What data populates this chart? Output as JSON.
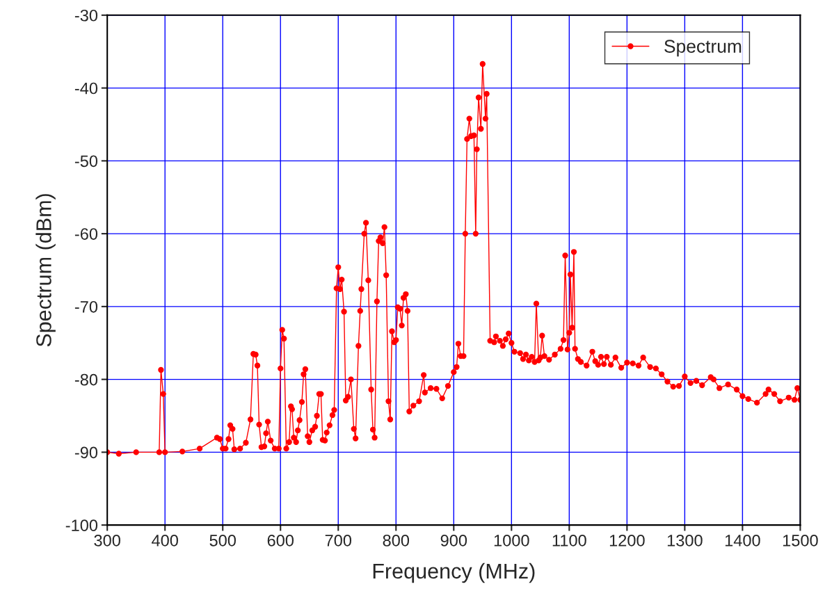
{
  "chart_data": {
    "type": "line",
    "xlabel": "Frequency (MHz)",
    "ylabel": "Spectrum (dBm)",
    "xlim": [
      300,
      1500
    ],
    "xticks": [
      300,
      400,
      500,
      600,
      700,
      800,
      900,
      1000,
      1100,
      1200,
      1300,
      1400,
      1500
    ],
    "ylim": [
      -100,
      -30
    ],
    "yticks": [
      -100,
      -90,
      -80,
      -70,
      -60,
      -50,
      -40,
      -30
    ],
    "grid": true,
    "legend": "top right",
    "marker": "circle",
    "line_style": "solid",
    "series": [
      {
        "name": "Spectrum",
        "color": "#ff0000",
        "x": [
          300,
          320,
          350,
          390,
          393,
          397,
          400,
          430,
          460,
          490,
          495,
          500,
          505,
          510,
          513,
          517,
          520,
          530,
          540,
          548,
          553,
          557,
          560,
          563,
          567,
          572,
          575,
          578,
          583,
          590,
          597,
          600,
          603,
          606,
          610,
          615,
          618,
          620,
          623,
          627,
          630,
          633,
          637,
          640,
          643,
          647,
          650,
          655,
          660,
          663,
          667,
          670,
          673,
          677,
          680,
          685,
          690,
          693,
          697,
          700,
          703,
          706,
          710,
          713,
          717,
          722,
          727,
          730,
          735,
          738,
          740,
          745,
          748,
          752,
          757,
          760,
          763,
          767,
          770,
          773,
          777,
          780,
          783,
          787,
          790,
          793,
          797,
          800,
          803,
          807,
          810,
          813,
          817,
          820,
          823,
          830,
          840,
          848,
          850,
          860,
          870,
          880,
          890,
          900,
          905,
          908,
          912,
          917,
          920,
          923,
          927,
          930,
          935,
          938,
          940,
          943,
          947,
          950,
          955,
          957,
          963,
          970,
          973,
          980,
          985,
          990,
          995,
          1000,
          1005,
          1015,
          1020,
          1025,
          1030,
          1035,
          1040,
          1043,
          1047,
          1050,
          1053,
          1057,
          1065,
          1075,
          1085,
          1090,
          1093,
          1097,
          1100,
          1102,
          1105,
          1108,
          1110,
          1115,
          1120,
          1130,
          1140,
          1145,
          1150,
          1155,
          1160,
          1165,
          1172,
          1180,
          1190,
          1200,
          1210,
          1220,
          1228,
          1240,
          1250,
          1260,
          1270,
          1280,
          1290,
          1300,
          1310,
          1320,
          1330,
          1345,
          1350,
          1360,
          1375,
          1390,
          1400,
          1410,
          1425,
          1440,
          1445,
          1455,
          1465,
          1480,
          1490,
          1495,
          1500
        ],
        "values": [
          -90,
          -90.2,
          -90,
          -90,
          -78.7,
          -82,
          -90,
          -89.9,
          -89.5,
          -88,
          -88.2,
          -89.5,
          -89.5,
          -88.2,
          -86.3,
          -86.8,
          -89.6,
          -89.5,
          -88.7,
          -85.5,
          -76.5,
          -76.6,
          -78.1,
          -86.2,
          -89.3,
          -89.2,
          -87.4,
          -85.8,
          -88.4,
          -89.5,
          -89.5,
          -78.5,
          -73.2,
          -74.4,
          -89.5,
          -88.6,
          -83.7,
          -84.1,
          -88,
          -88.6,
          -87,
          -85.6,
          -83.1,
          -79.3,
          -78.6,
          -87.8,
          -88.6,
          -87,
          -86.5,
          -85,
          -82,
          -82,
          -88.3,
          -88.4,
          -87.3,
          -86.3,
          -84.9,
          -84.2,
          -67.5,
          -64.6,
          -67.6,
          -66.3,
          -70.7,
          -82.9,
          -82.4,
          -80,
          -86.8,
          -88.1,
          -75.4,
          -70.6,
          -67.6,
          -60,
          -58.5,
          -66.4,
          -81.4,
          -86.9,
          -88,
          -69.3,
          -61,
          -60.5,
          -61.3,
          -59.1,
          -65.7,
          -83,
          -85.5,
          -73.4,
          -74.9,
          -74.6,
          -70.1,
          -70.3,
          -72.6,
          -68.8,
          -68.3,
          -70.6,
          -84.4,
          -83.6,
          -83,
          -79.4,
          -81.8,
          -81.2,
          -81.3,
          -82.6,
          -80.9,
          -79,
          -78.3,
          -75.1,
          -76.8,
          -76.8,
          -60,
          -47,
          -44.2,
          -46.6,
          -46.5,
          -60,
          -48.4,
          -41.3,
          -45.6,
          -36.7,
          -44.2,
          -40.8,
          -74.7,
          -74.9,
          -74.1,
          -74.7,
          -75.4,
          -74.5,
          -73.7,
          -75,
          -76.2,
          -76.4,
          -77.2,
          -76.6,
          -77.4,
          -76.9,
          -77.6,
          -69.6,
          -77.4,
          -77,
          -74,
          -76.8,
          -77.3,
          -76.6,
          -75.8,
          -74.6,
          -63,
          -75.9,
          -73.6,
          -65.6,
          -72.9,
          -62.5,
          -75.8,
          -77.2,
          -77.6,
          -78.1,
          -76.2,
          -77.5,
          -78,
          -76.9,
          -77.9,
          -76.9,
          -78,
          -77,
          -78.4,
          -77.7,
          -77.8,
          -78.1,
          -77,
          -78.3,
          -78.5,
          -79.3,
          -80.3,
          -81,
          -80.9,
          -79.6,
          -80.5,
          -80.2,
          -80.8,
          -79.7,
          -80,
          -81.2,
          -80.7,
          -81.4,
          -82.3,
          -82.7,
          -83.2,
          -82,
          -81.4,
          -82,
          -83,
          -82.5,
          -82.8,
          -81.2,
          -82.8
        ]
      }
    ]
  }
}
